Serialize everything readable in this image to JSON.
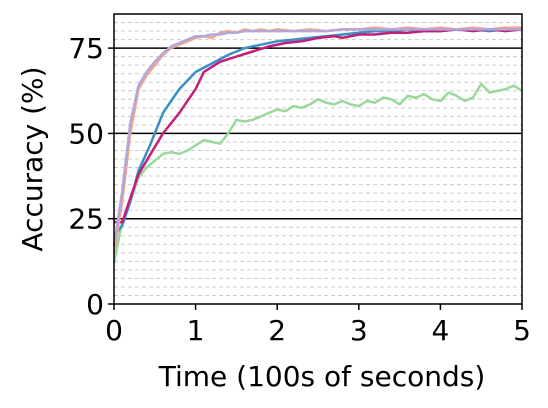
{
  "chart_data": {
    "type": "line",
    "title": "",
    "xlabel": "Time (100s of seconds)",
    "ylabel": "Accuracy (%)",
    "xlim": [
      0,
      5
    ],
    "ylim": [
      0,
      85
    ],
    "xticks": [
      0,
      1,
      2,
      3,
      4,
      5
    ],
    "xtick_labels": [
      "0",
      "1",
      "2",
      "3",
      "4",
      "5"
    ],
    "yticks": [
      0,
      25,
      50,
      75
    ],
    "ytick_labels": [
      "0",
      "25",
      "50",
      "75"
    ],
    "major_grid_y": [
      25,
      50,
      75
    ],
    "minor_grid": "dashed horizontal lines every 2.5",
    "legend": "none",
    "series": [
      {
        "color": "#9ad89a",
        "x": [
          0,
          0.1,
          0.2,
          0.3,
          0.4,
          0.5,
          0.6,
          0.7,
          0.8,
          0.9,
          1.0,
          1.1,
          1.2,
          1.3,
          1.4,
          1.5,
          1.6,
          1.7,
          1.8,
          1.9,
          2.0,
          2.1,
          2.2,
          2.3,
          2.4,
          2.5,
          2.6,
          2.7,
          2.8,
          2.9,
          3.0,
          3.1,
          3.2,
          3.3,
          3.4,
          3.5,
          3.6,
          3.7,
          3.8,
          3.9,
          4.0,
          4.1,
          4.2,
          4.3,
          4.4,
          4.5,
          4.6,
          4.7,
          4.8,
          4.9,
          5.0
        ],
        "values": [
          12,
          24,
          30,
          37,
          40,
          42,
          44,
          44.5,
          44,
          45,
          46.5,
          48,
          47.5,
          47,
          50,
          54,
          53.5,
          54,
          55,
          56,
          57,
          56.5,
          58,
          57.5,
          58.5,
          60,
          59,
          58.5,
          59.5,
          58.5,
          58,
          59.5,
          59,
          60.5,
          60,
          58.5,
          61,
          60.5,
          61.5,
          60,
          59.5,
          62,
          61,
          59.5,
          60.5,
          64.5,
          62,
          62.5,
          63,
          64,
          62.5
        ]
      },
      {
        "color": "#3a8fc4",
        "x": [
          0,
          0.1,
          0.2,
          0.3,
          0.45,
          0.6,
          0.8,
          1.0,
          1.2,
          1.4,
          1.6,
          1.8,
          2.0,
          2.2,
          2.4,
          2.6,
          2.8,
          3.0,
          3.2,
          3.4,
          3.6,
          3.8,
          4.0,
          4.2,
          4.4,
          4.6,
          4.8,
          5.0
        ],
        "values": [
          20,
          23,
          30,
          39,
          47,
          56,
          63,
          68,
          70.5,
          73,
          75,
          76,
          77,
          77.5,
          78,
          78.5,
          79,
          79.5,
          80,
          80,
          80.5,
          80,
          80,
          80.5,
          80.5,
          80,
          80.5,
          81
        ]
      },
      {
        "color": "#c21f7a",
        "x": [
          0,
          0.1,
          0.2,
          0.3,
          0.45,
          0.6,
          0.8,
          1.0,
          1.1,
          1.3,
          1.5,
          1.7,
          1.9,
          2.1,
          2.3,
          2.5,
          2.7,
          2.8,
          3.0,
          3.2,
          3.4,
          3.6,
          3.8,
          4.0,
          4.2,
          4.4,
          4.6,
          4.8,
          5.0
        ],
        "values": [
          24,
          24,
          31,
          38,
          44,
          50,
          56,
          63,
          68,
          71,
          72.5,
          74,
          75.5,
          76.5,
          77,
          78,
          78.5,
          78,
          79,
          79,
          79.5,
          79.5,
          80,
          80,
          80.5,
          80,
          80.5,
          80,
          80.5
        ]
      },
      {
        "color": "#f2a48a",
        "x": [
          0,
          0.1,
          0.2,
          0.3,
          0.4,
          0.5,
          0.6,
          0.7,
          0.8,
          0.9,
          1.0,
          1.1,
          1.2,
          1.3,
          1.4,
          1.5,
          1.6,
          1.7,
          1.8,
          1.9,
          2.0,
          2.2,
          2.4,
          2.6,
          2.8,
          3.0,
          3.2,
          3.4,
          3.6,
          3.8,
          4.0,
          4.2,
          4.4,
          4.6,
          4.8,
          5.0
        ],
        "values": [
          15,
          30,
          50,
          63,
          67,
          70,
          73,
          75,
          76,
          77,
          78,
          78.5,
          78,
          79.5,
          80,
          79.5,
          80.5,
          80,
          80.5,
          80,
          80.5,
          80,
          80.5,
          80,
          80.5,
          80.5,
          81,
          80.5,
          81,
          80.5,
          81,
          80.5,
          81,
          80.5,
          81,
          81
        ]
      },
      {
        "color": "#b3a6da",
        "x": [
          0,
          0.1,
          0.2,
          0.3,
          0.4,
          0.5,
          0.6,
          0.7,
          0.8,
          0.9,
          1.0,
          1.1,
          1.2,
          1.3,
          1.4,
          1.5,
          1.6,
          1.7,
          1.8,
          1.9,
          2.0,
          2.2,
          2.4,
          2.6,
          2.8,
          3.0,
          3.2,
          3.4,
          3.6,
          3.8,
          4.0,
          4.2,
          4.4,
          4.6,
          4.8,
          5.0
        ],
        "values": [
          17,
          33,
          53,
          64,
          68,
          71,
          73.5,
          75.5,
          76.5,
          77.5,
          78.5,
          78.5,
          79,
          79,
          79.5,
          79.5,
          80,
          80,
          80,
          80,
          80,
          80,
          80,
          80,
          80.5,
          80.5,
          80.5,
          80.5,
          80.5,
          80.5,
          80.5,
          80.5,
          80.5,
          80.5,
          80.5,
          80.5
        ]
      }
    ]
  }
}
